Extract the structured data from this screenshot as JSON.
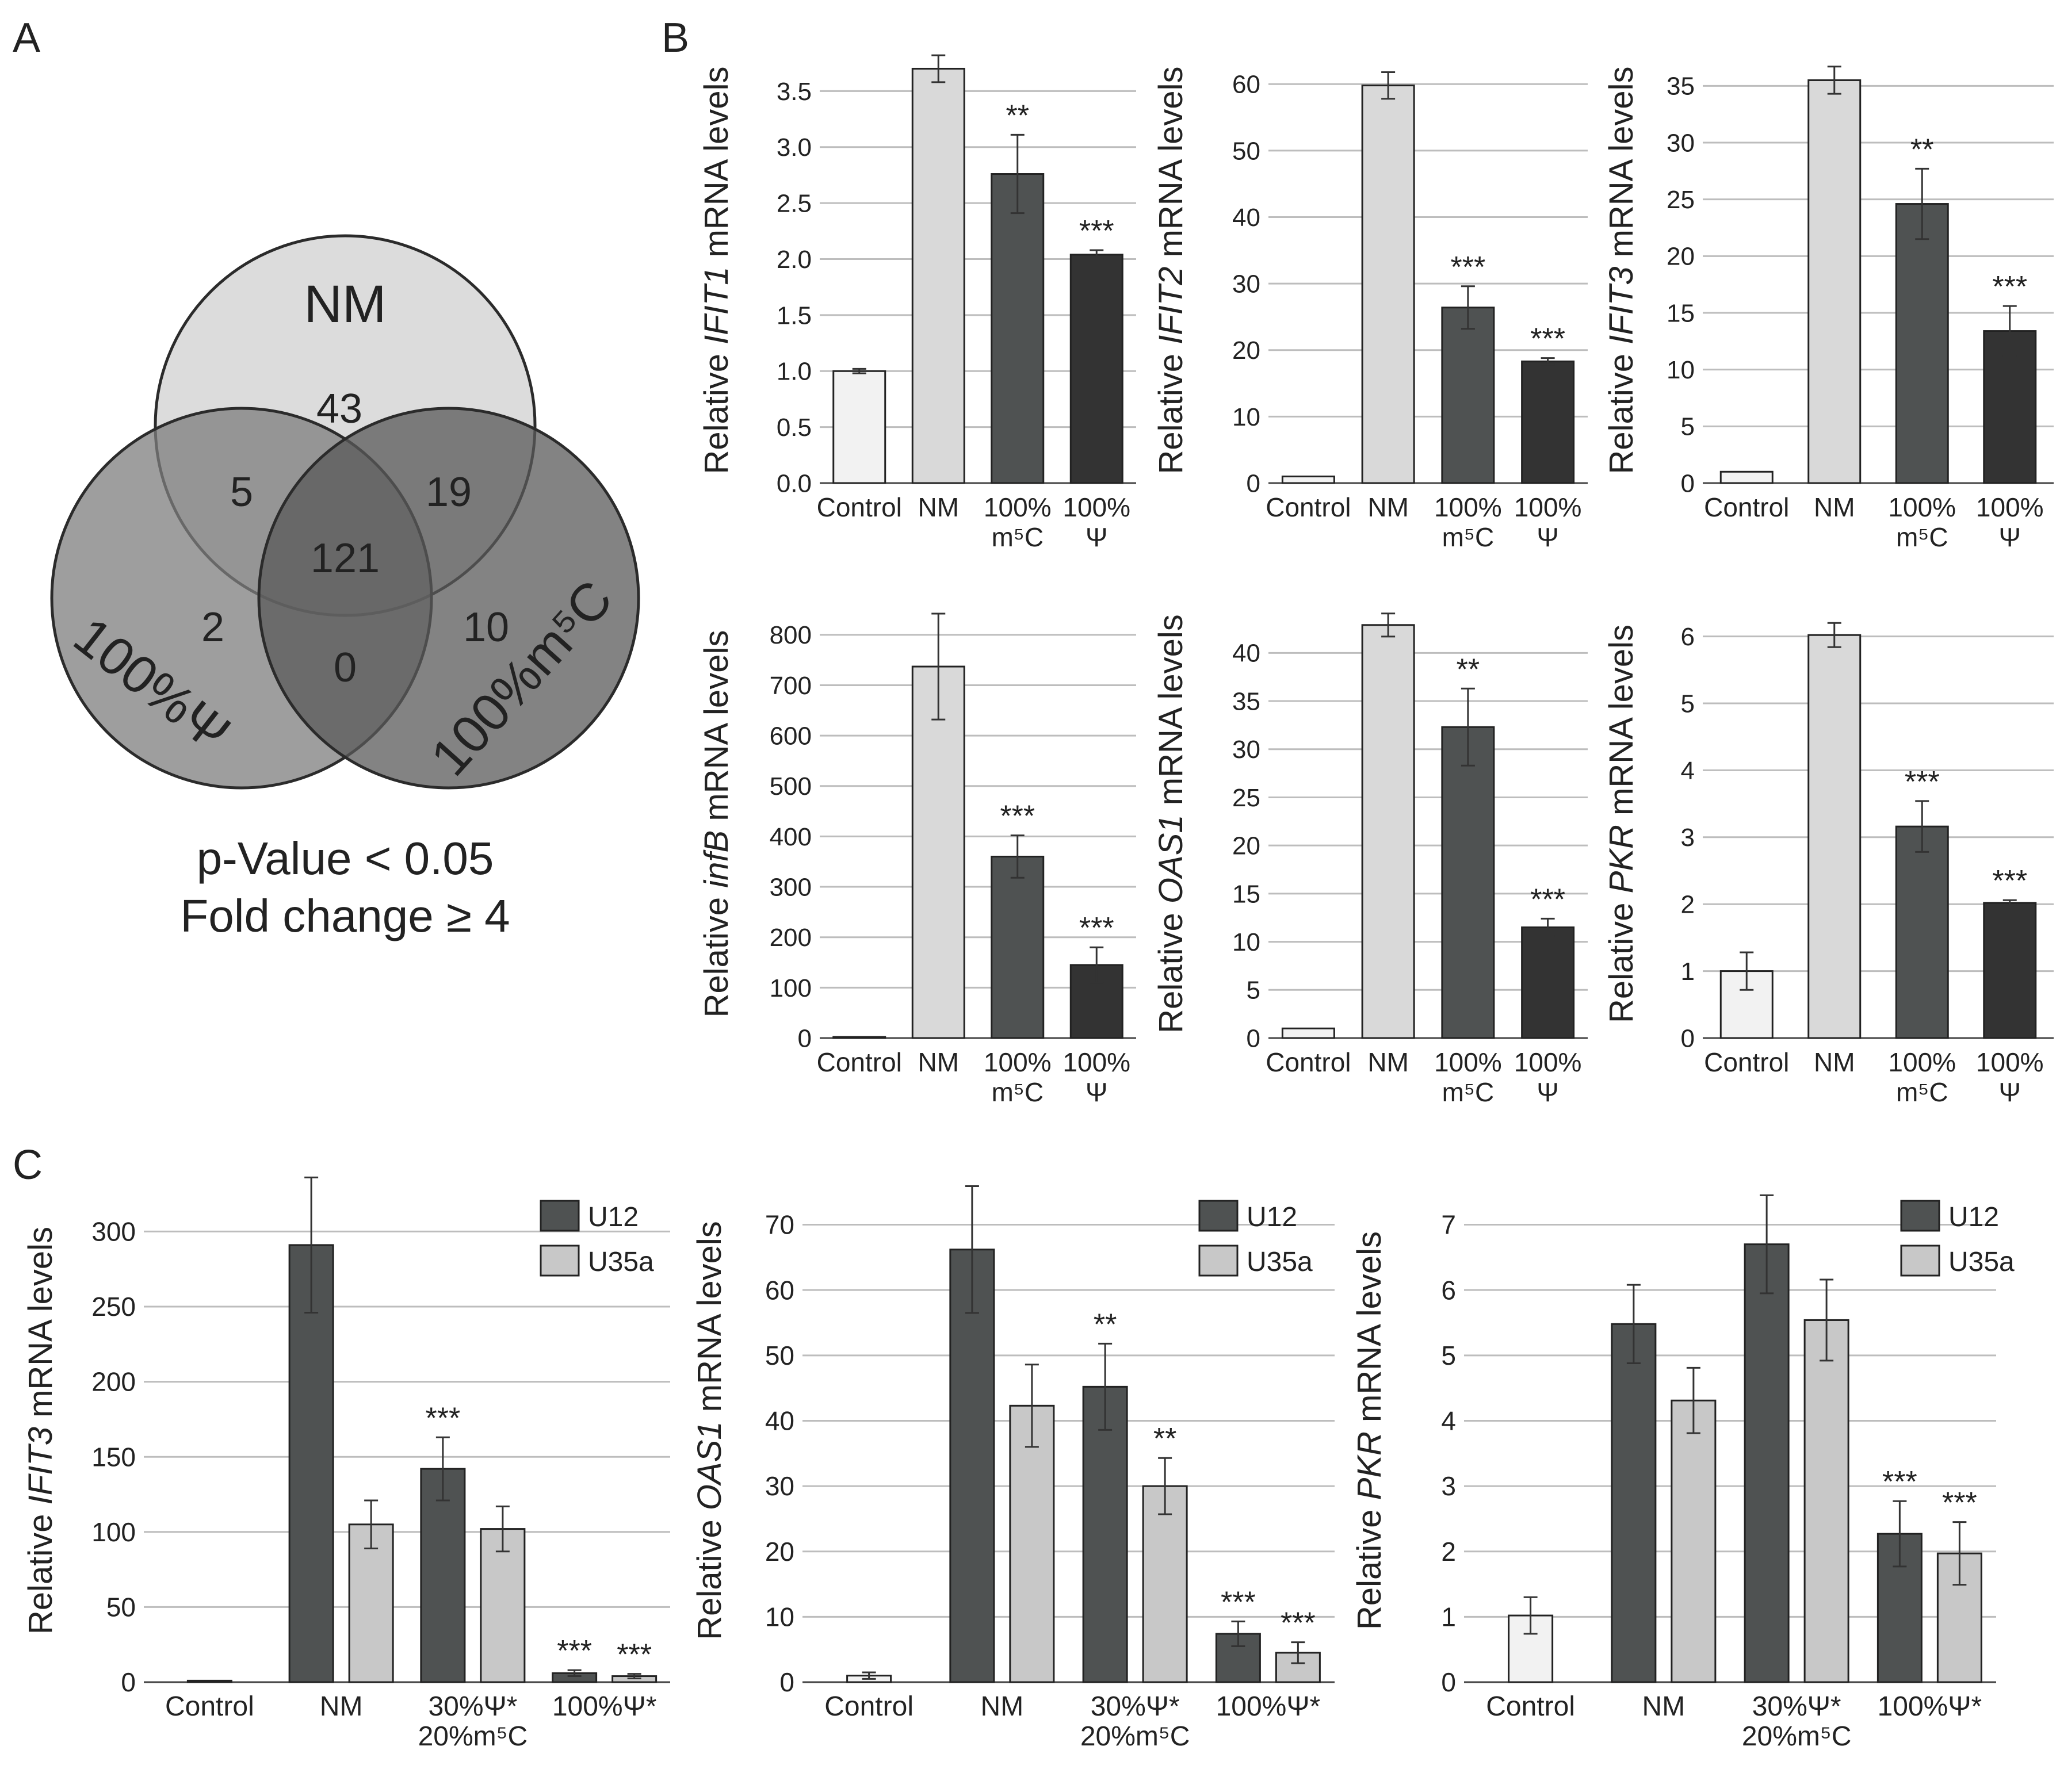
{
  "panel_labels": {
    "a": "A",
    "b": "B",
    "c": "C"
  },
  "venn": {
    "sets": [
      "NM",
      "100%Ψ",
      "100%m⁵C"
    ],
    "regions": {
      "nm_only": "43",
      "nm_psi": "5",
      "nm_m5c": "19",
      "all": "121",
      "psi_only": "2",
      "m5c_only": "10",
      "psi_m5c": "0"
    },
    "footer_line1": "p-Value < 0.05",
    "footer_line2": "Fold change ≥ 4"
  },
  "colors": {
    "control": "#f2f2f2",
    "nm": "#d9d9d9",
    "m5c": "#4f5252",
    "psi": "#333333",
    "u12": "#4f5252",
    "u35a": "#c8c8c8"
  },
  "chart_data": [
    {
      "id": "b1",
      "type": "bar",
      "gene": "IFIT1",
      "ylabel_pre": "Relative ",
      "ylabel_post": " mRNA levels",
      "categories": [
        [
          "Control"
        ],
        [
          "NM"
        ],
        [
          "100%",
          "m⁵C"
        ],
        [
          "100%",
          "Ψ"
        ]
      ],
      "series": [
        {
          "name": "",
          "values": [
            1.0,
            3.7,
            2.76,
            2.04
          ],
          "errors": [
            0.02,
            0.12,
            0.35,
            0.04
          ],
          "colors": [
            "control",
            "nm",
            "m5c",
            "psi"
          ],
          "sig": [
            "",
            "",
            "**",
            "***"
          ]
        }
      ],
      "ylim": [
        0,
        3.8
      ],
      "yticks": [
        0,
        0.5,
        1.0,
        1.5,
        2.0,
        2.5,
        3.0,
        3.5
      ],
      "ytick_labels": [
        "0.0",
        "0.5",
        "1.0",
        "1.5",
        "2.0",
        "2.5",
        "3.0",
        "3.5"
      ]
    },
    {
      "id": "b2",
      "type": "bar",
      "gene": "IFIT2",
      "ylabel_pre": "Relative ",
      "ylabel_post": " mRNA levels",
      "categories": [
        [
          "Control"
        ],
        [
          "NM"
        ],
        [
          "100%",
          "m⁵C"
        ],
        [
          "100%",
          "Ψ"
        ]
      ],
      "series": [
        {
          "name": "",
          "values": [
            1,
            59.8,
            26.4,
            18.3
          ],
          "errors": [
            0,
            2.0,
            3.2,
            0.5
          ],
          "colors": [
            "control",
            "nm",
            "m5c",
            "psi"
          ],
          "sig": [
            "",
            "",
            "***",
            "***"
          ]
        }
      ],
      "ylim": [
        0,
        64
      ],
      "yticks": [
        0,
        10,
        20,
        30,
        40,
        50,
        60
      ],
      "ytick_labels": [
        "0",
        "10",
        "20",
        "30",
        "40",
        "50",
        "60"
      ]
    },
    {
      "id": "b3",
      "type": "bar",
      "gene": "IFIT3",
      "ylabel_pre": "Relative ",
      "ylabel_post": " mRNA levels",
      "categories": [
        [
          "Control"
        ],
        [
          "NM"
        ],
        [
          "100%",
          "m⁵C"
        ],
        [
          "100%",
          "Ψ"
        ]
      ],
      "series": [
        {
          "name": "",
          "values": [
            1,
            35.5,
            24.6,
            13.4
          ],
          "errors": [
            0,
            1.2,
            3.1,
            2.2
          ],
          "colors": [
            "control",
            "nm",
            "m5c",
            "psi"
          ],
          "sig": [
            "",
            "",
            "**",
            "***"
          ]
        }
      ],
      "ylim": [
        0,
        37.5
      ],
      "yticks": [
        0,
        5,
        10,
        15,
        20,
        25,
        30,
        35
      ],
      "ytick_labels": [
        "0",
        "5",
        "10",
        "15",
        "20",
        "25",
        "30",
        "35"
      ]
    },
    {
      "id": "b4",
      "type": "bar",
      "gene": "infB",
      "ylabel_pre": "Relative ",
      "ylabel_post": " mRNA levels",
      "categories": [
        [
          "Control"
        ],
        [
          "NM"
        ],
        [
          "100%",
          "m⁵C"
        ],
        [
          "100%",
          "Ψ"
        ]
      ],
      "series": [
        {
          "name": "",
          "values": [
            1,
            737,
            360,
            145
          ],
          "errors": [
            0,
            105,
            42,
            35
          ],
          "colors": [
            "control",
            "nm",
            "m5c",
            "psi"
          ],
          "sig": [
            "",
            "",
            "***",
            "***"
          ]
        }
      ],
      "ylim": [
        0,
        850
      ],
      "yticks": [
        0,
        100,
        200,
        300,
        400,
        500,
        600,
        700,
        800
      ],
      "ytick_labels": [
        "0",
        "100",
        "200",
        "300",
        "400",
        "500",
        "600",
        "700",
        "800"
      ]
    },
    {
      "id": "b5",
      "type": "bar",
      "gene": "OAS1",
      "ylabel_pre": "Relative ",
      "ylabel_post": " mRNA levels",
      "categories": [
        [
          "Control"
        ],
        [
          "NM"
        ],
        [
          "100%",
          "m⁵C"
        ],
        [
          "100%",
          "Ψ"
        ]
      ],
      "series": [
        {
          "name": "",
          "values": [
            1,
            42.9,
            32.3,
            11.5
          ],
          "errors": [
            0,
            1.2,
            4.0,
            0.9
          ],
          "colors": [
            "control",
            "nm",
            "m5c",
            "psi"
          ],
          "sig": [
            "",
            "",
            "**",
            "***"
          ]
        }
      ],
      "ylim": [
        0,
        44.5
      ],
      "yticks": [
        0,
        5,
        10,
        15,
        20,
        25,
        30,
        35,
        40
      ],
      "ytick_labels": [
        "0",
        "5",
        "10",
        "15",
        "20",
        "25",
        "30",
        "35",
        "40"
      ]
    },
    {
      "id": "b6",
      "type": "bar",
      "gene": "PKR",
      "ylabel_pre": "Relative ",
      "ylabel_post": " mRNA levels",
      "categories": [
        [
          "Control"
        ],
        [
          "NM"
        ],
        [
          "100%",
          "m⁵C"
        ],
        [
          "100%",
          "Ψ"
        ]
      ],
      "series": [
        {
          "name": "",
          "values": [
            1.0,
            6.02,
            3.16,
            2.02
          ],
          "errors": [
            0.28,
            0.18,
            0.38,
            0.04
          ],
          "colors": [
            "control",
            "nm",
            "m5c",
            "psi"
          ],
          "sig": [
            "",
            "",
            "***",
            "***"
          ]
        }
      ],
      "ylim": [
        0,
        6.4
      ],
      "yticks": [
        0,
        1,
        2,
        3,
        4,
        5,
        6
      ],
      "ytick_labels": [
        "0",
        "1",
        "2",
        "3",
        "4",
        "5",
        "6"
      ]
    },
    {
      "id": "c1",
      "type": "bar",
      "gene": "IFIT3",
      "ylabel_pre": "Relative ",
      "ylabel_post": " mRNA levels",
      "categories": [
        [
          "Control"
        ],
        [
          "NM"
        ],
        [
          "30%Ψ*",
          "20%m⁵C"
        ],
        [
          "100%Ψ*"
        ]
      ],
      "legend": [
        "U12",
        "U35a"
      ],
      "series": [
        {
          "name": "U12",
          "values": [
            1,
            291,
            142,
            6
          ],
          "errors": [
            0,
            45,
            21,
            2
          ],
          "colors": [
            "control",
            "u12",
            "u12",
            "u12"
          ],
          "sig": [
            "",
            "",
            "***",
            "***"
          ]
        },
        {
          "name": "U35a",
          "values": [
            null,
            105,
            102,
            4
          ],
          "errors": [
            0,
            16,
            15,
            1.5
          ],
          "colors": [
            "u35a",
            "u35a",
            "u35a",
            "u35a"
          ],
          "sig": [
            "",
            "",
            "",
            "***"
          ]
        }
      ],
      "ylim": [
        0,
        335
      ],
      "yticks": [
        0,
        50,
        100,
        150,
        200,
        250,
        300
      ],
      "ytick_labels": [
        "0",
        "50",
        "100",
        "150",
        "200",
        "250",
        "300"
      ]
    },
    {
      "id": "c2",
      "type": "bar",
      "gene": "OAS1",
      "ylabel_pre": "Relative ",
      "ylabel_post": " mRNA levels",
      "categories": [
        [
          "Control"
        ],
        [
          "NM"
        ],
        [
          "30%Ψ*",
          "20%m⁵C"
        ],
        [
          "100%Ψ*"
        ]
      ],
      "legend": [
        "U12",
        "U35a"
      ],
      "series": [
        {
          "name": "U12",
          "values": [
            1,
            66.2,
            45.2,
            7.4
          ],
          "errors": [
            0.5,
            9.7,
            6.6,
            1.9
          ],
          "colors": [
            "control",
            "u12",
            "u12",
            "u12"
          ],
          "sig": [
            "",
            "",
            "**",
            "***"
          ]
        },
        {
          "name": "U35a",
          "values": [
            null,
            42.3,
            30.0,
            4.5
          ],
          "errors": [
            0,
            6.3,
            4.3,
            1.6
          ],
          "colors": [
            "u35a",
            "u35a",
            "u35a",
            "u35a"
          ],
          "sig": [
            "",
            "",
            "**",
            "***"
          ]
        }
      ],
      "ylim": [
        0,
        77
      ],
      "yticks": [
        0,
        10,
        20,
        30,
        40,
        50,
        60,
        70
      ],
      "ytick_labels": [
        "0",
        "10",
        "20",
        "30",
        "40",
        "50",
        "60",
        "70"
      ]
    },
    {
      "id": "c3",
      "type": "bar",
      "gene": "PKR",
      "ylabel_pre": "Relative ",
      "ylabel_post": " mRNA levels",
      "categories": [
        [
          "Control"
        ],
        [
          "NM"
        ],
        [
          "30%Ψ*",
          "20%m⁵C"
        ],
        [
          "100%Ψ*"
        ]
      ],
      "legend": [
        "U12",
        "U35a"
      ],
      "series": [
        {
          "name": "U12",
          "values": [
            1.02,
            5.48,
            6.7,
            2.27
          ],
          "errors": [
            0.28,
            0.6,
            0.75,
            0.5
          ],
          "colors": [
            "control",
            "u12",
            "u12",
            "u12"
          ],
          "sig": [
            "",
            "",
            "",
            "***"
          ]
        },
        {
          "name": "U35a",
          "values": [
            null,
            4.31,
            5.54,
            1.97
          ],
          "errors": [
            0,
            0.5,
            0.62,
            0.48
          ],
          "colors": [
            "u35a",
            "u35a",
            "u35a",
            "u35a"
          ],
          "sig": [
            "",
            "",
            "",
            "***"
          ]
        }
      ],
      "ylim": [
        0,
        7.7
      ],
      "yticks": [
        0,
        1,
        2,
        3,
        4,
        5,
        6,
        7
      ],
      "ytick_labels": [
        "0",
        "1",
        "2",
        "3",
        "4",
        "5",
        "6",
        "7"
      ]
    }
  ]
}
